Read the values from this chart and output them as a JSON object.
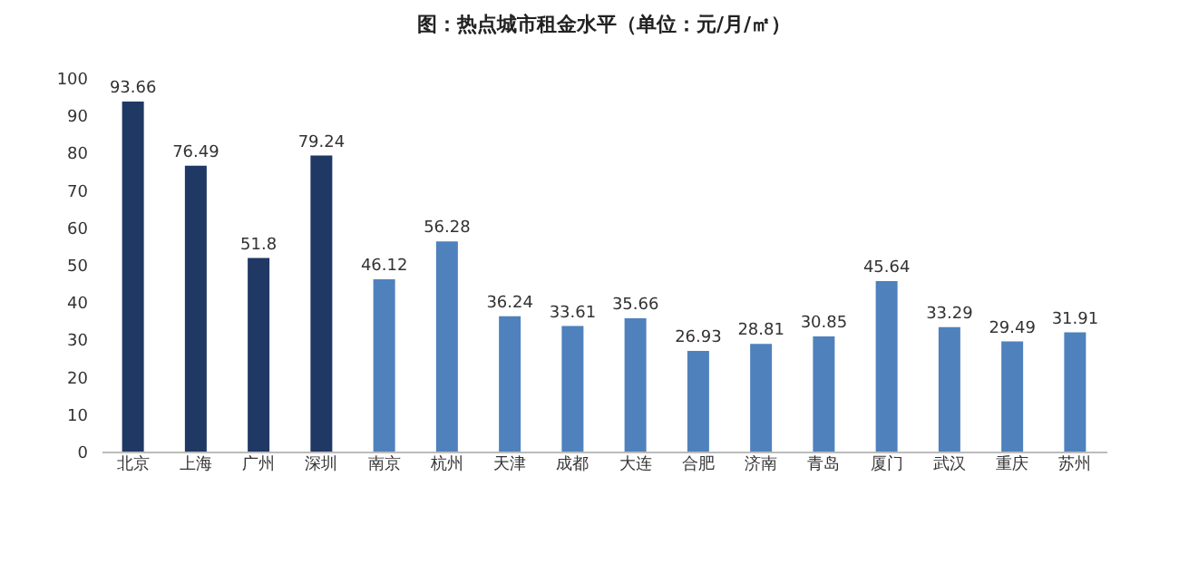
{
  "chart_data": {
    "type": "bar",
    "title": "图：热点城市租金水平（单位：元/月/㎡）",
    "categories": [
      "北京",
      "上海",
      "广州",
      "深圳",
      "南京",
      "杭州",
      "天津",
      "成都",
      "大连",
      "合肥",
      "济南",
      "青岛",
      "厦门",
      "武汉",
      "重庆",
      "苏州"
    ],
    "values": [
      93.66,
      76.49,
      51.8,
      79.24,
      46.12,
      56.28,
      36.24,
      33.61,
      35.66,
      26.93,
      28.81,
      30.85,
      45.64,
      33.29,
      29.49,
      31.91
    ],
    "colors": [
      "#1f3864",
      "#1f3864",
      "#1f3864",
      "#1f3864",
      "#4f81bd",
      "#4f81bd",
      "#4f81bd",
      "#4f81bd",
      "#4f81bd",
      "#4f81bd",
      "#4f81bd",
      "#4f81bd",
      "#4f81bd",
      "#4f81bd",
      "#4f81bd",
      "#4f81bd"
    ],
    "ylim": [
      0,
      100
    ],
    "yticks": [
      0,
      10,
      20,
      30,
      40,
      50,
      60,
      70,
      80,
      90,
      100
    ],
    "grid": false,
    "data_labels": true
  }
}
